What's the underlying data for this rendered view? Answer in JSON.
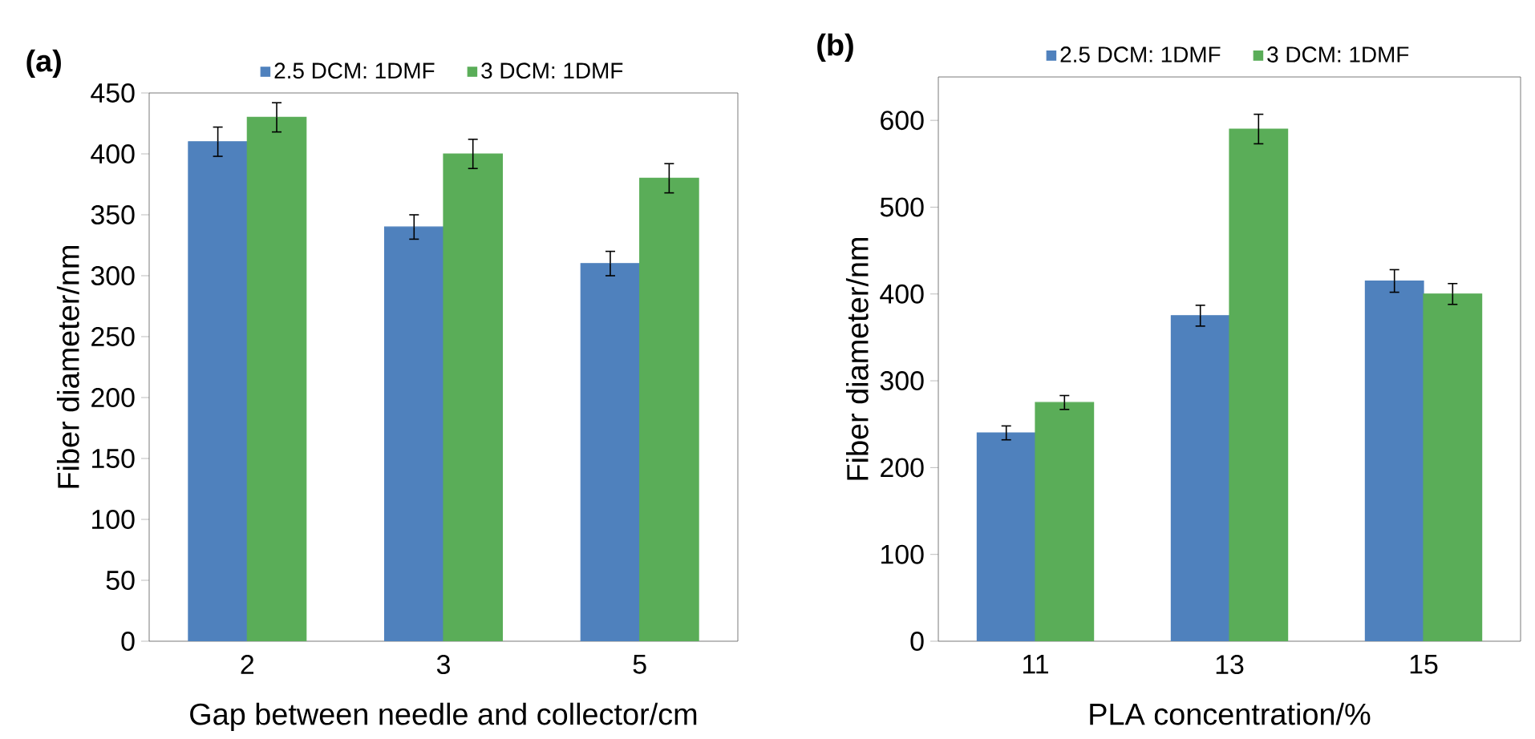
{
  "chart_data": [
    {
      "type": "bar",
      "title": "(a)",
      "xlabel": "Gap between needle and collector/cm",
      "ylabel": "Fiber diameter/nm",
      "categories": [
        "2",
        "3",
        "5"
      ],
      "series": [
        {
          "name": "2.5 DCM: 1DMF",
          "color": "#4f81bd",
          "values": [
            410,
            340,
            310
          ],
          "errors": [
            12,
            10,
            10
          ]
        },
        {
          "name": "3 DCM: 1DMF",
          "color": "#5aad58",
          "values": [
            430,
            400,
            380
          ],
          "errors": [
            12,
            12,
            12
          ]
        }
      ],
      "ylim": [
        0,
        450
      ],
      "yticks": [
        0,
        50,
        100,
        150,
        200,
        250,
        300,
        350,
        400,
        450
      ],
      "legend": "top"
    },
    {
      "type": "bar",
      "title": "(b)",
      "xlabel": "PLA concentration/%",
      "ylabel": "Fiber diameter/nm",
      "categories": [
        "11",
        "13",
        "15"
      ],
      "series": [
        {
          "name": "2.5 DCM: 1DMF",
          "color": "#4f81bd",
          "values": [
            240,
            375,
            415
          ],
          "errors": [
            8,
            12,
            13
          ]
        },
        {
          "name": "3 DCM: 1DMF",
          "color": "#5aad58",
          "values": [
            275,
            590,
            400
          ],
          "errors": [
            8,
            17,
            12
          ]
        }
      ],
      "ylim": [
        0,
        650
      ],
      "yticks": [
        0,
        100,
        200,
        300,
        400,
        500,
        600
      ],
      "legend": "top"
    }
  ]
}
